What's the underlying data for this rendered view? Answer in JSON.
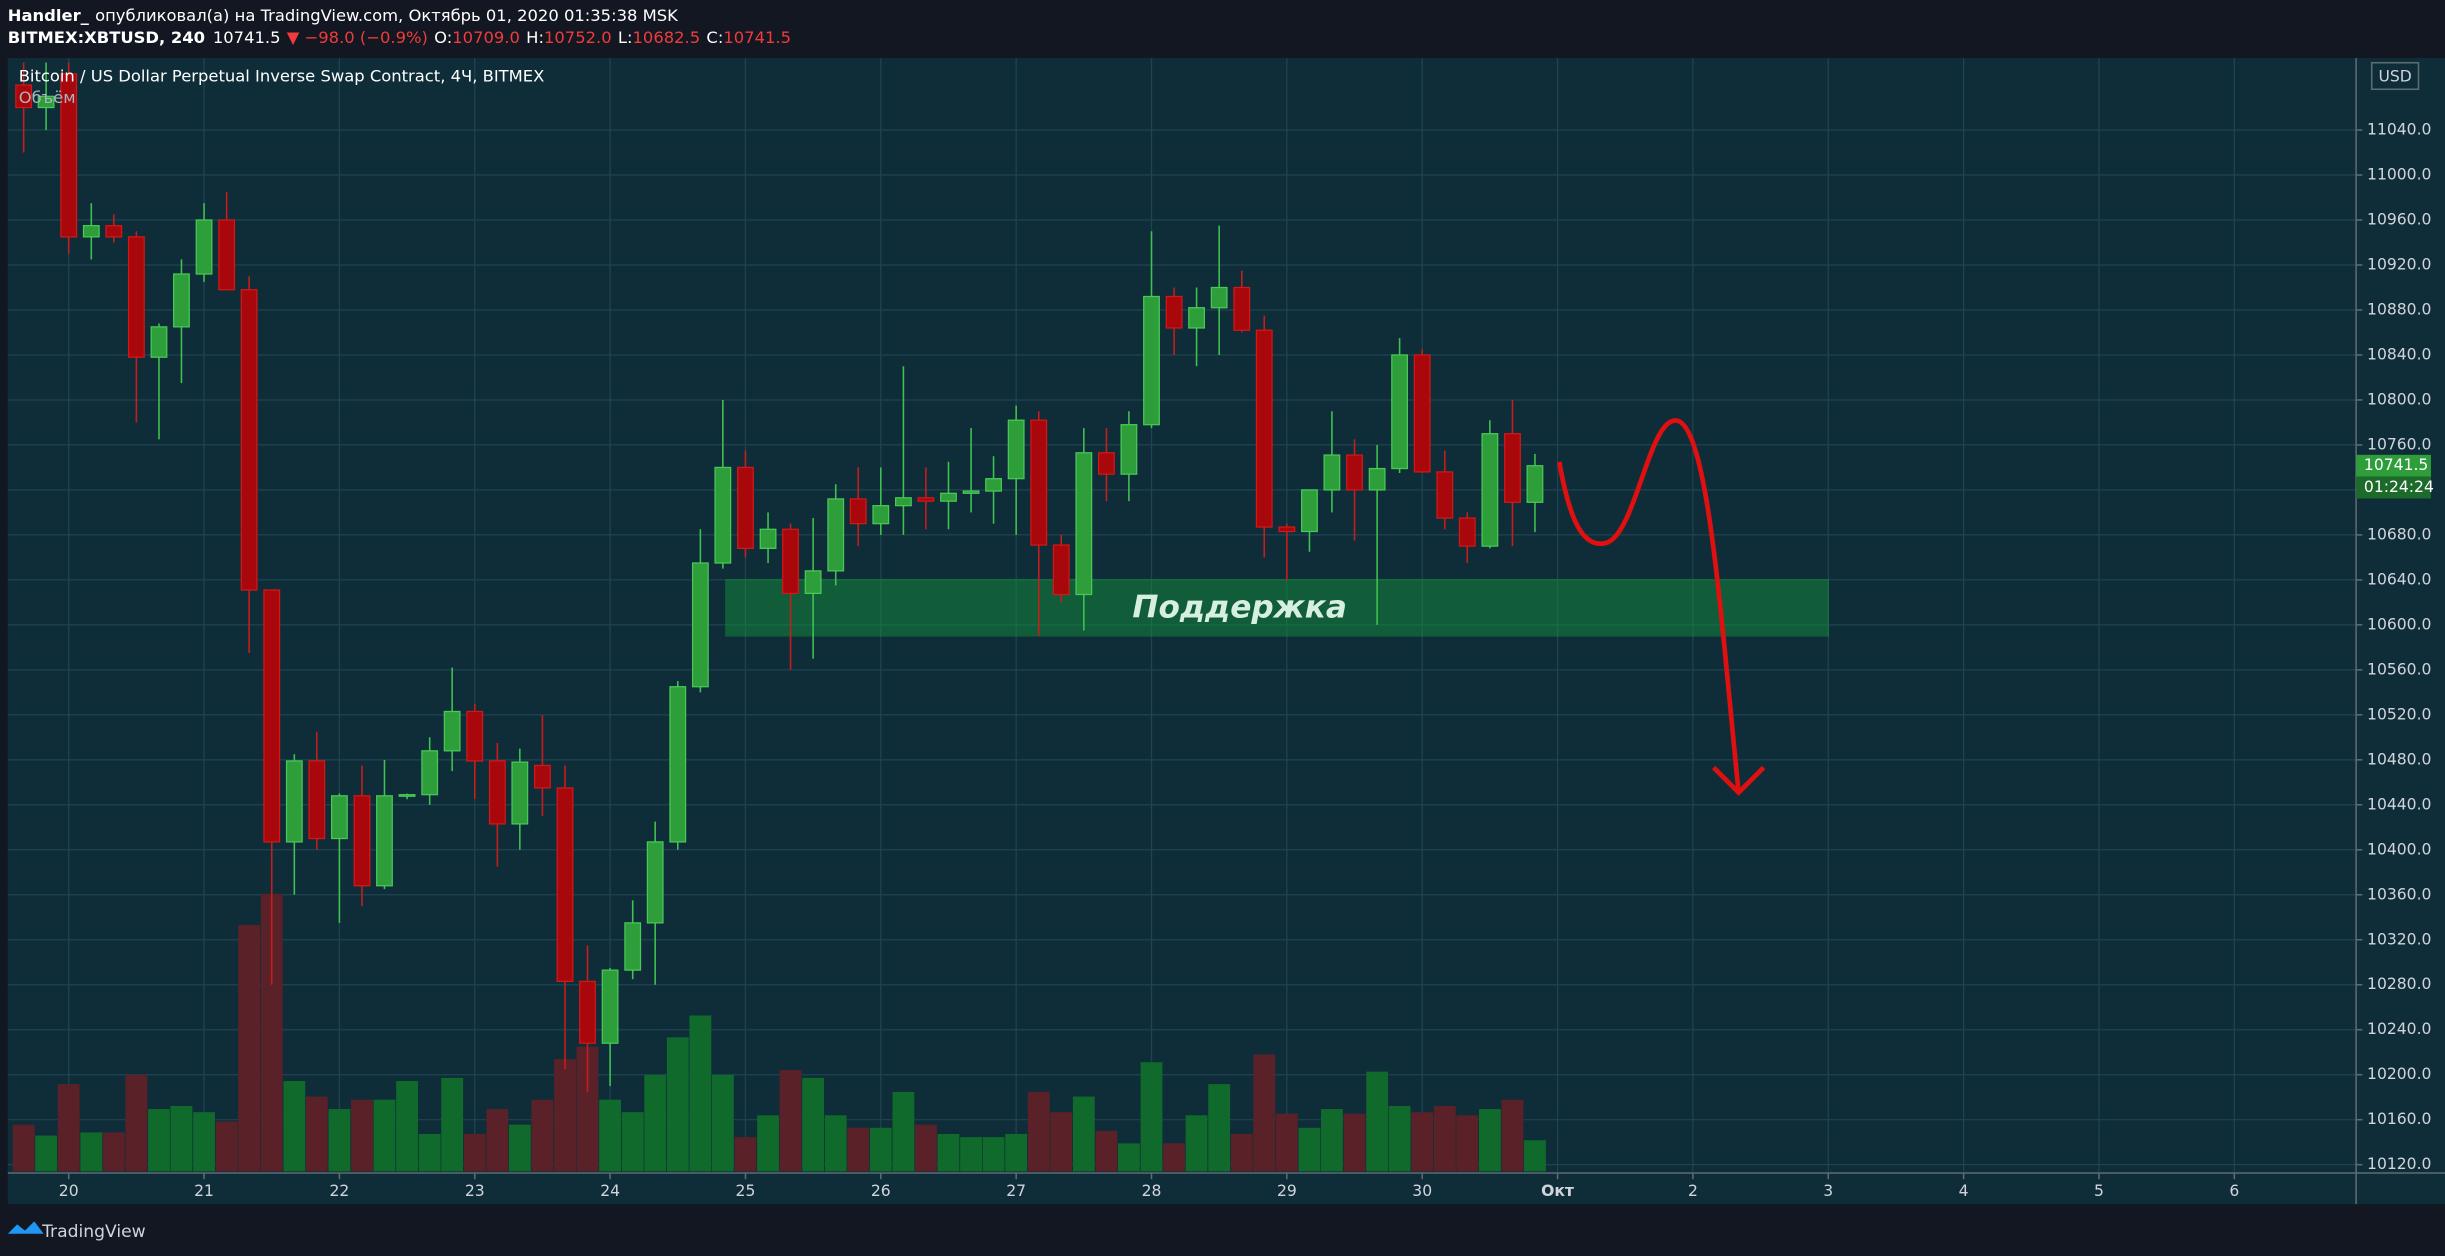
{
  "header": {
    "user": "Handler_",
    "published": "опубликовал(а) на TradingView.com, Октябрь 01, 2020 01:35:38 MSK"
  },
  "chart_data": {
    "type": "candlestick",
    "title": "Bitcoin / US Dollar Perpetual Inverse Swap Contract, 4Ч, BITMEX",
    "volume_label": "Объём",
    "symbol": "BITMEX:XBTUSD, 240",
    "last_label": "10741.5",
    "change_label": "▼ −98.0 (−0.9%)",
    "ohlc_labels": [
      {
        "key": "O:",
        "value": "10709.0"
      },
      {
        "key": "H:",
        "value": "10752.0"
      },
      {
        "key": "L:",
        "value": "10682.5"
      },
      {
        "key": "C:",
        "value": "10741.5"
      }
    ],
    "countdown": "01:24:24",
    "currency": "USD",
    "annotation": "Поддержка",
    "x": [
      19.667,
      19.833,
      20,
      20.167,
      20.333,
      20.5,
      20.667,
      20.833,
      21,
      21.167,
      21.333,
      21.5,
      21.667,
      21.833,
      22,
      22.167,
      22.333,
      22.5,
      22.667,
      22.833,
      23,
      23.167,
      23.333,
      23.5,
      23.667,
      23.833,
      24,
      24.167,
      24.333,
      24.5,
      24.667,
      24.833,
      25,
      25.167,
      25.333,
      25.5,
      25.667,
      25.833,
      26,
      26.167,
      26.333,
      26.5,
      26.667,
      26.833,
      27,
      27.167,
      27.333,
      27.5,
      27.667,
      27.833,
      28,
      28.167,
      28.333,
      28.5,
      28.667,
      28.833,
      29,
      29.167,
      29.333,
      29.5,
      29.667,
      29.833,
      30,
      30.167,
      30.333,
      30.5,
      30.667,
      30.833
    ],
    "open": [
      11080,
      11060,
      11090,
      10945,
      10955,
      10945,
      10838,
      10865,
      10912,
      10960,
      10898,
      10631,
      10407,
      10479,
      10410,
      10448,
      10368,
      10448,
      10449,
      10488,
      10523,
      10479,
      10423,
      10475,
      10455,
      10283,
      10228,
      10293,
      10335,
      10407,
      10545,
      10655,
      10740,
      10668,
      10685,
      10628,
      10648,
      10712,
      10690,
      10706,
      10713,
      10710,
      10717,
      10719,
      10730,
      10782,
      10671,
      10627,
      10753,
      10734,
      10778,
      10892,
      10864,
      10882,
      10900,
      10862,
      10687,
      10683,
      10720,
      10751,
      10720,
      10739,
      10840,
      10736,
      10695,
      10670,
      10770,
      10709
    ],
    "high": [
      11100,
      11100,
      11100,
      10975,
      10965,
      10950,
      10868,
      10925,
      10975,
      10985,
      10910,
      10631,
      10485,
      10505,
      10450,
      10475,
      10480,
      10450,
      10500,
      10562,
      10530,
      10495,
      10490,
      10520,
      10475,
      10315,
      10295,
      10355,
      10425,
      10550,
      10685,
      10800,
      10755,
      10700,
      10690,
      10695,
      10725,
      10740,
      10740,
      10830,
      10740,
      10745,
      10775,
      10750,
      10795,
      10790,
      10680,
      10775,
      10775,
      10790,
      10950,
      10900,
      10900,
      10955,
      10915,
      10875,
      10690,
      10720,
      10790,
      10765,
      10760,
      10855,
      10845,
      10755,
      10700,
      10782,
      10800,
      10752
    ],
    "low": [
      11020,
      11040,
      10930,
      10925,
      10940,
      10780,
      10765,
      10815,
      10905,
      10898,
      10575,
      10280,
      10360,
      10400,
      10335,
      10350,
      10365,
      10445,
      10440,
      10470,
      10445,
      10385,
      10400,
      10430,
      10205,
      10185,
      10190,
      10285,
      10280,
      10400,
      10540,
      10650,
      10660,
      10655,
      10560,
      10570,
      10635,
      10670,
      10680,
      10680,
      10685,
      10685,
      10700,
      10690,
      10680,
      10590,
      10620,
      10595,
      10710,
      10710,
      10775,
      10840,
      10830,
      10840,
      10860,
      10660,
      10640,
      10665,
      10700,
      10675,
      10600,
      10735,
      10735,
      10685,
      10655,
      10668,
      10670,
      10682.5
    ],
    "close": [
      11060,
      11070,
      10945,
      10955,
      10945,
      10838,
      10865,
      10912,
      10960,
      10898,
      10631,
      10407,
      10479,
      10410,
      10448,
      10368,
      10448,
      10449,
      10488,
      10523,
      10479,
      10423,
      10478,
      10455,
      10283,
      10228,
      10293,
      10335,
      10407,
      10545,
      10655,
      10740,
      10668,
      10685,
      10628,
      10648,
      10712,
      10690,
      10706,
      10713,
      10710,
      10717,
      10719,
      10730,
      10782,
      10671,
      10627,
      10753,
      10734,
      10778,
      10892,
      10864,
      10882,
      10900,
      10862,
      10687,
      10683,
      10720,
      10751,
      10720,
      10739,
      10840,
      10736,
      10695,
      10670,
      10770,
      10709,
      10741.5
    ],
    "volume": [
      30,
      23,
      56,
      25,
      25,
      62,
      40,
      42,
      38,
      32,
      158,
      178,
      58,
      48,
      40,
      46,
      46,
      58,
      24,
      60,
      24,
      40,
      30,
      46,
      72,
      80,
      46,
      38,
      62,
      86,
      100,
      62,
      22,
      36,
      65,
      60,
      36,
      28,
      28,
      51,
      30,
      24,
      22,
      22,
      24,
      51,
      38,
      48,
      26,
      18,
      70,
      18,
      36,
      56,
      24,
      75,
      37,
      28,
      40,
      37,
      64,
      42,
      38,
      42,
      36,
      40,
      46,
      20
    ],
    "up_color": "#2e9e3b",
    "down_color": "#a8070c",
    "volume_up_color": "#0f6a2c",
    "volume_down_color": "#5a2129",
    "xlim": [
      19.55,
      36.9
    ],
    "xticks": [
      20,
      21,
      22,
      23,
      24,
      25,
      26,
      27,
      28,
      29,
      30,
      {
        "value": 31,
        "label": "Окт"
      },
      {
        "value": 32,
        "label": "2"
      },
      {
        "value": 33,
        "label": "3"
      },
      {
        "value": 34,
        "label": "4"
      },
      {
        "value": 35,
        "label": "5"
      },
      {
        "value": 36,
        "label": "6"
      }
    ],
    "ylim": [
      10114,
      11104
    ],
    "yticks": [
      {
        "value": 10120,
        "label": "10120.0"
      },
      {
        "value": 10160,
        "label": "10160.0"
      },
      {
        "value": 10200,
        "label": "10200.0"
      },
      {
        "value": 10240,
        "label": "10240.0"
      },
      {
        "value": 10280,
        "label": "10280.0"
      },
      {
        "value": 10320,
        "label": "10320.0"
      },
      {
        "value": 10360,
        "label": "10360.0"
      },
      {
        "value": 10400,
        "label": "10400.0"
      },
      {
        "value": 10440,
        "label": "10440.0"
      },
      {
        "value": 10480,
        "label": "10480.0"
      },
      {
        "value": 10520,
        "label": "10520.0"
      },
      {
        "value": 10560,
        "label": "10560.0"
      },
      {
        "value": 10600,
        "label": "10600.0"
      },
      {
        "value": 10640,
        "label": "10640.0"
      },
      {
        "value": 10680,
        "label": "10680.0"
      },
      {
        "value": 10720,
        "label": "10720.0"
      },
      {
        "value": 10760,
        "label": "10760.0"
      },
      {
        "value": 10800,
        "label": "10800.0"
      },
      {
        "value": 10840,
        "label": "10840.0"
      },
      {
        "value": 10880,
        "label": "10880.0"
      },
      {
        "value": 10920,
        "label": "10920.0"
      },
      {
        "value": 10960,
        "label": "10960.0"
      },
      {
        "value": 11000,
        "label": "11000.0"
      },
      {
        "value": 11040,
        "label": "11040.0"
      }
    ],
    "grid": true
  },
  "footer": {
    "brand": "TradingView"
  }
}
